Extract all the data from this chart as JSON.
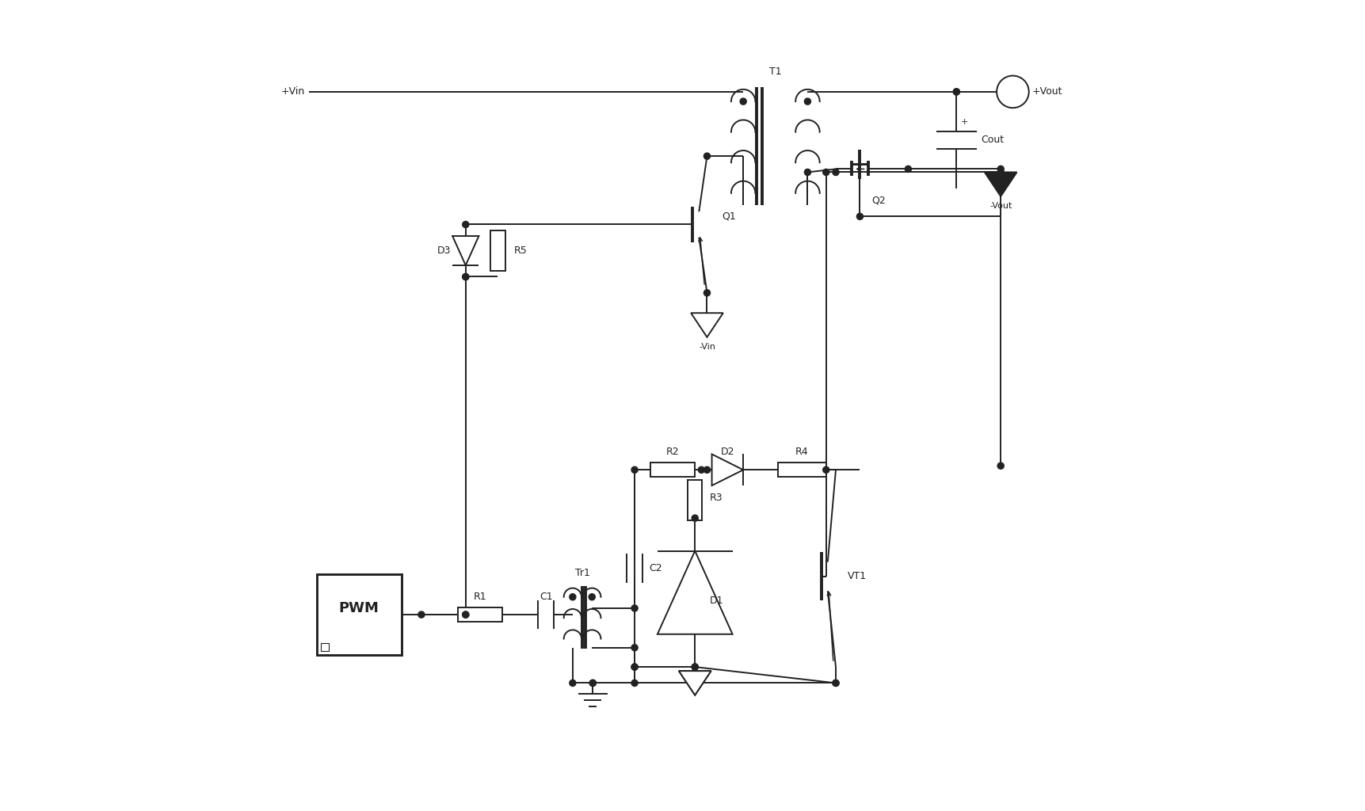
{
  "bg": "#ffffff",
  "lc": "#222222",
  "lw": 1.4,
  "dot_r": 0.004,
  "labels": {
    "Vin_pos": "+Vin",
    "Vout_pos": "+Vout",
    "Vout_neg": "-Vout",
    "Vin_neg": "-Vin",
    "T1": "T1",
    "Q1": "Q1",
    "Q2": "Q2",
    "VT1": "VT1",
    "Tr1": "Tr1",
    "R1": "R1",
    "R2": "R2",
    "R3": "R3",
    "R4": "R4",
    "R5": "R5",
    "C1": "C1",
    "C2": "C2",
    "Cout": "Cout",
    "D1": "D1",
    "D2": "D2",
    "D3": "D3",
    "PWM": "PWM"
  }
}
